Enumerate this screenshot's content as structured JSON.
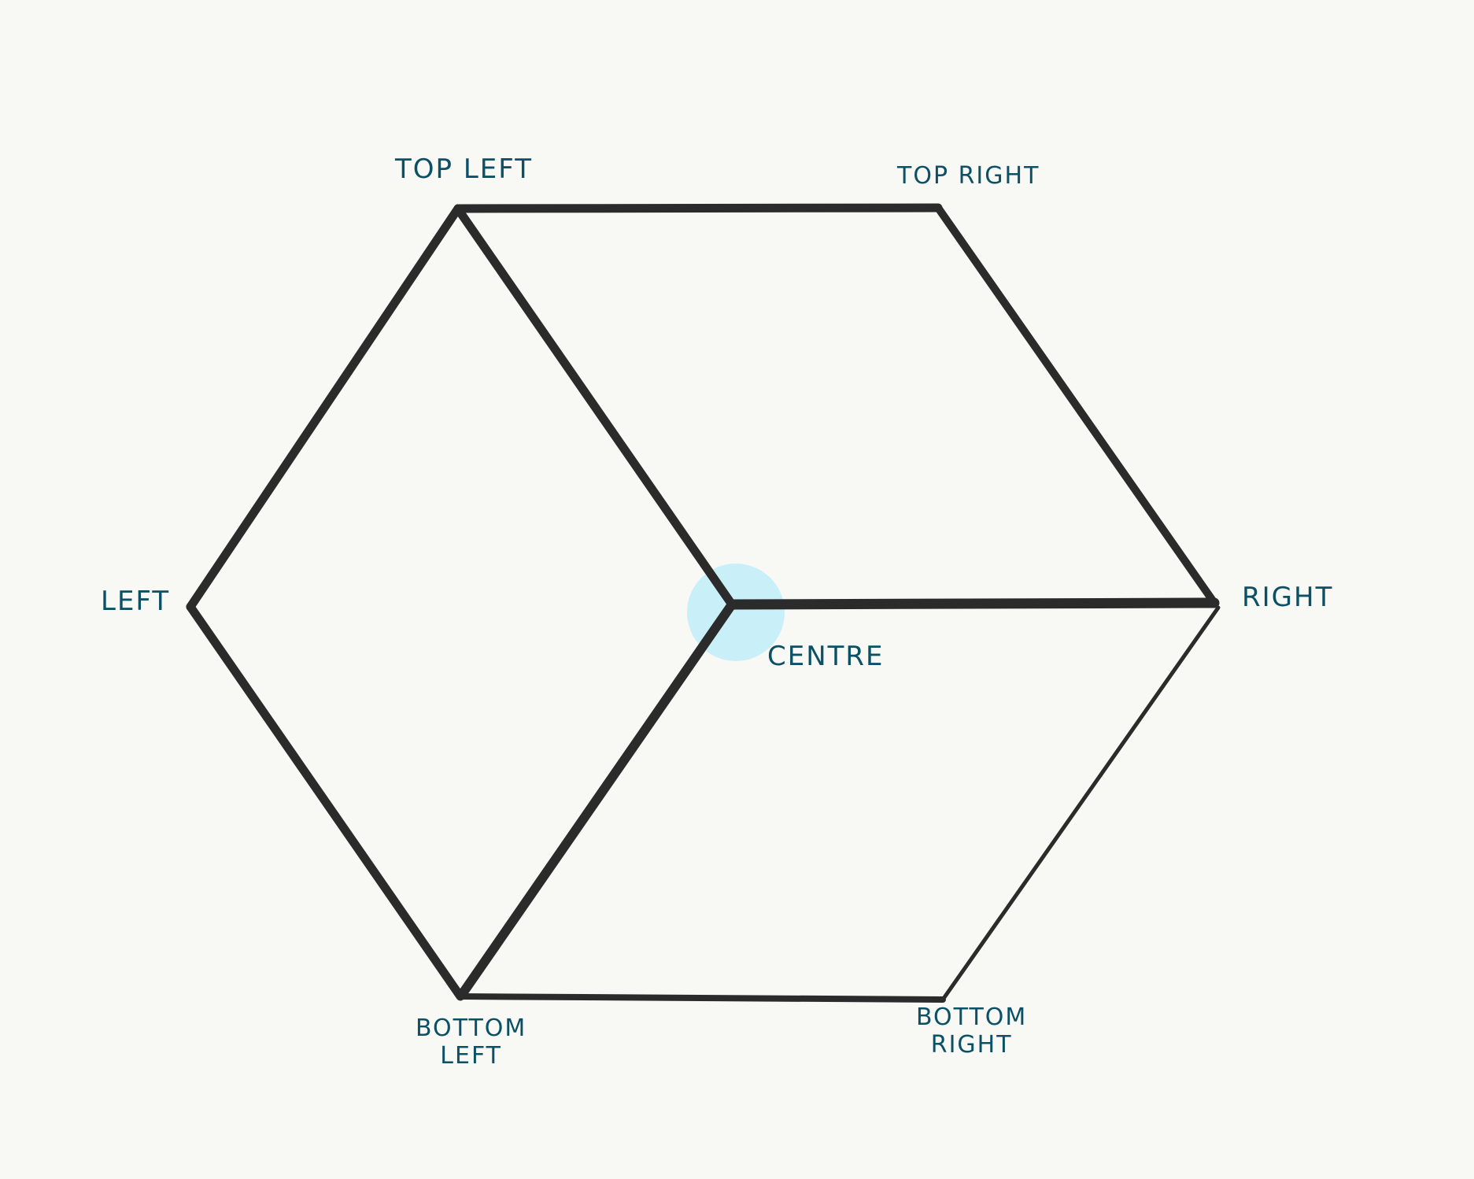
{
  "colors": {
    "background": "#f8f8f5",
    "stroke": "#2b2b2b",
    "label": "#0b5064",
    "highlight": "#c9eff9"
  },
  "labels": {
    "top_left": "TOP LEFT",
    "top_right": "TOP RIGHT",
    "left": "LEFT",
    "right": "RIGHT",
    "centre": "CENTRE",
    "bottom_left_line1": "BOTTOM",
    "bottom_left_line2": "LEFT",
    "bottom_right_line1": "BOTTOM",
    "bottom_right_line2": "RIGHT"
  }
}
